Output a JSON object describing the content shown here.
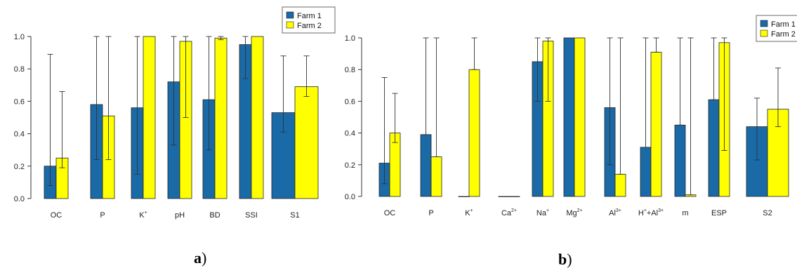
{
  "colors": {
    "farm1": "#1a6aa8",
    "farm2": "#ffff00",
    "axis": "#000000"
  },
  "chart_data": [
    {
      "type": "bar",
      "panel_label": "a",
      "panel_suffix": ")",
      "categories": [
        "OC",
        "P",
        "K⁺",
        "pH",
        "BD",
        "SSI",
        "S1"
      ],
      "category_bases": [
        "OC",
        "P",
        "K",
        "pH",
        "BD",
        "SSI",
        "S1"
      ],
      "category_sups": [
        "",
        "",
        "+",
        "",
        "",
        "",
        ""
      ],
      "y_ticks": [
        "0.0",
        "0.2",
        "0.4",
        "0.6",
        "0.8",
        "1.0"
      ],
      "ylim": [
        0,
        1
      ],
      "grid": false,
      "legend_position": "top-right",
      "series": [
        {
          "name": "Farm 1",
          "values": [
            0.2,
            0.58,
            0.56,
            0.72,
            0.61,
            0.95,
            0.53
          ],
          "err_low": [
            0.08,
            0.24,
            0.15,
            0.33,
            0.3,
            0.74,
            0.41
          ],
          "err_high": [
            0.89,
            1.0,
            1.0,
            1.0,
            1.0,
            1.0,
            0.88
          ]
        },
        {
          "name": "Farm 2",
          "values": [
            0.25,
            0.51,
            1.0,
            0.97,
            0.99,
            1.0,
            0.69
          ],
          "err_low": [
            0.19,
            0.24,
            1.0,
            0.5,
            0.98,
            1.0,
            0.63
          ],
          "err_high": [
            0.66,
            1.0,
            1.0,
            1.0,
            1.0,
            1.0,
            0.88
          ]
        }
      ]
    },
    {
      "type": "bar",
      "panel_label": "b",
      "panel_suffix": ")",
      "categories": [
        "OC",
        "P",
        "K⁺",
        "Ca²⁺",
        "Na⁺",
        "Mg²⁺",
        "Al³⁺",
        "H⁺+Al³⁺",
        "m",
        "ESP",
        "S2"
      ],
      "category_bases": [
        "OC",
        "P",
        "K",
        "Ca",
        "Na",
        "Mg",
        "Al",
        "H",
        "m",
        "ESP",
        "S2"
      ],
      "category_sups": [
        "",
        "",
        "+",
        "2+",
        "+",
        "2+",
        "3+",
        "+",
        "",
        "",
        ""
      ],
      "category_extra_base": [
        "",
        "",
        "",
        "",
        "",
        "",
        "",
        "+Al",
        "",
        "",
        ""
      ],
      "category_extra_sup": [
        "",
        "",
        "",
        "",
        "",
        "",
        "",
        "3+",
        "",
        "",
        ""
      ],
      "y_ticks": [
        "0.0",
        "0.2",
        "0.4",
        "0.6",
        "0.8",
        "1.0"
      ],
      "ylim": [
        0,
        1
      ],
      "grid": false,
      "legend_position": "top-right",
      "series": [
        {
          "name": "Farm 1",
          "values": [
            0.21,
            0.39,
            0.0,
            0.0,
            0.85,
            1.0,
            0.56,
            0.31,
            0.45,
            0.61,
            0.44
          ],
          "err_low": [
            0.08,
            0.39,
            0.0,
            0.0,
            0.6,
            1.0,
            0.2,
            0.31,
            0.45,
            0.61,
            0.23
          ],
          "err_high": [
            0.75,
            1.0,
            0.0,
            0.0,
            1.0,
            1.0,
            1.0,
            1.0,
            1.0,
            1.0,
            0.62
          ]
        },
        {
          "name": "Farm 2",
          "values": [
            0.4,
            0.25,
            0.8,
            0.0,
            0.98,
            1.0,
            0.14,
            0.91,
            0.01,
            0.97,
            0.55
          ],
          "err_low": [
            0.34,
            0.25,
            0.8,
            0.0,
            0.6,
            1.0,
            0.14,
            0.91,
            0.01,
            0.29,
            0.44
          ],
          "err_high": [
            0.65,
            1.0,
            1.0,
            0.0,
            1.0,
            1.0,
            1.0,
            1.0,
            1.0,
            1.0,
            0.81
          ]
        }
      ]
    }
  ]
}
